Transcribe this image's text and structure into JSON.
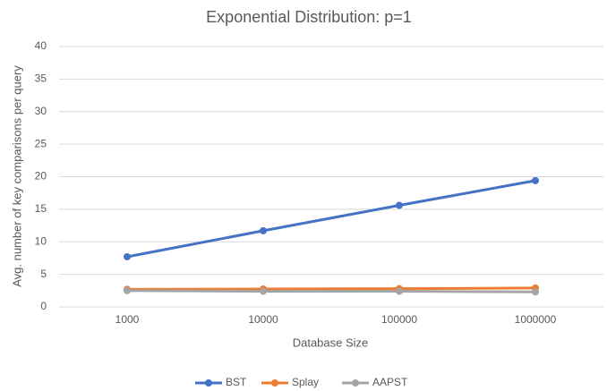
{
  "chart_data": {
    "type": "line",
    "title": "Exponential Distribution: p=1",
    "x_label": "Database Size",
    "y_label": "Avg. number of key comparisons per query",
    "categories": [
      "1000",
      "10000",
      "100000",
      "1000000"
    ],
    "series": [
      {
        "name": "BST",
        "color": "#4472c4",
        "values": [
          7.7,
          11.7,
          15.6,
          19.4
        ]
      },
      {
        "name": "Splay",
        "color": "#ed7d31",
        "values": [
          2.7,
          2.75,
          2.8,
          2.9
        ]
      },
      {
        "name": "AAPST",
        "color": "#a5a5a5",
        "values": [
          2.5,
          2.4,
          2.4,
          2.3
        ]
      }
    ],
    "ylim": [
      0,
      40
    ],
    "yticks": [
      0,
      5,
      10,
      15,
      20,
      25,
      30,
      35,
      40
    ],
    "grid": true,
    "legend": "bottom"
  }
}
